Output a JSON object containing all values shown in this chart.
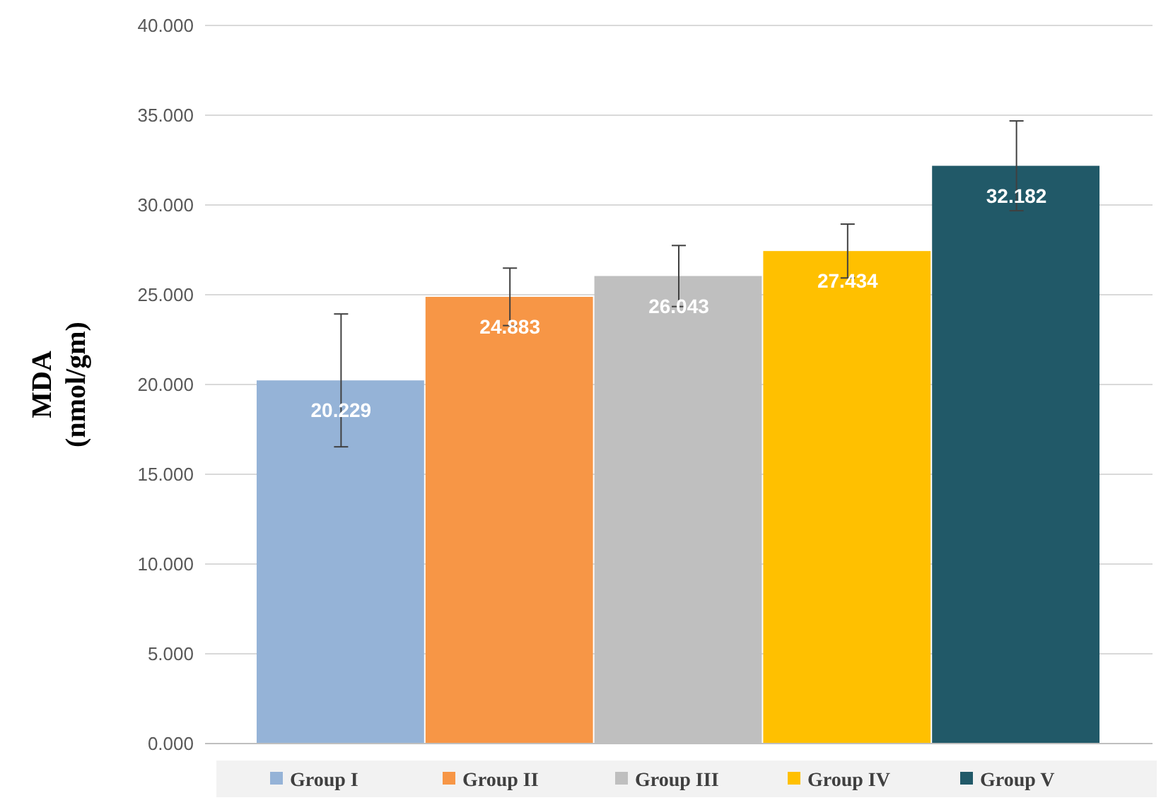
{
  "chart_data": {
    "type": "bar",
    "ylabel": "MDA\n(nmol/gm)",
    "categories": [
      null
    ],
    "series": [
      {
        "name": "Group I",
        "color": "#95b3d7",
        "values": [
          20.229
        ],
        "errors": [
          3.7
        ]
      },
      {
        "name": "Group II",
        "color": "#f79646",
        "values": [
          24.883
        ],
        "errors": [
          1.6
        ]
      },
      {
        "name": "Group III",
        "color": "#bfbfbf",
        "values": [
          26.043
        ],
        "errors": [
          1.7
        ]
      },
      {
        "name": "Group IV",
        "color": "#ffc000",
        "values": [
          27.434
        ],
        "errors": [
          1.5
        ]
      },
      {
        "name": "Group V",
        "color": "#215968",
        "values": [
          32.182
        ],
        "errors": [
          2.5
        ]
      }
    ],
    "ylim": [
      0,
      40
    ],
    "yticks": [
      {
        "value": 0,
        "label": "0.000"
      },
      {
        "value": 5,
        "label": "5.000"
      },
      {
        "value": 10,
        "label": "10.000"
      },
      {
        "value": 15,
        "label": "15.000"
      },
      {
        "value": 20,
        "label": "20.000"
      },
      {
        "value": 25,
        "label": "25.000"
      },
      {
        "value": 30,
        "label": "30.000"
      },
      {
        "value": 35,
        "label": "35.000"
      },
      {
        "value": 40,
        "label": "40.000"
      }
    ],
    "grid": "y",
    "data_labels": true,
    "legend": "bottom"
  }
}
